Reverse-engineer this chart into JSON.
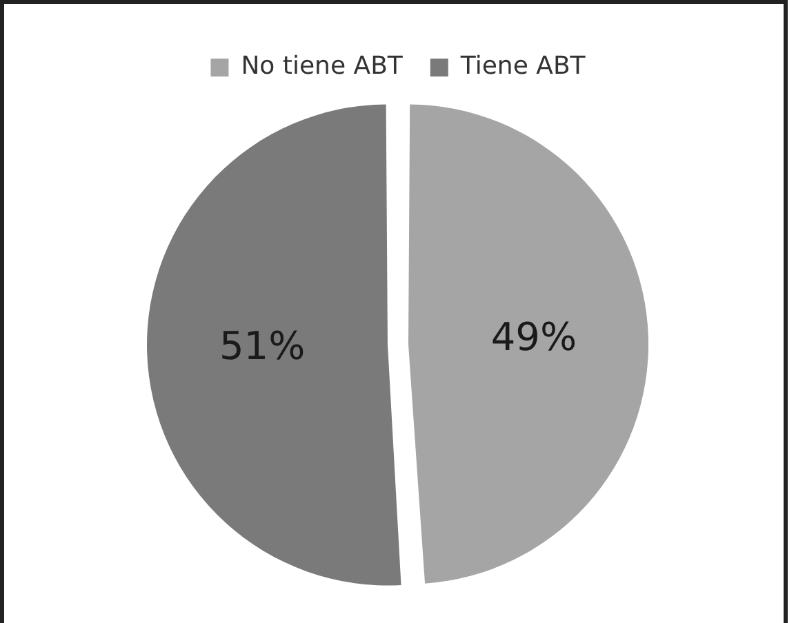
{
  "chart_data": {
    "type": "pie",
    "categories": [
      "No tiene ABT",
      "Tiene ABT"
    ],
    "values": [
      49,
      51
    ],
    "colors": [
      "#a5a5a5",
      "#7a7a7a"
    ],
    "value_labels": [
      "49%",
      "51%"
    ],
    "legend": "top"
  }
}
